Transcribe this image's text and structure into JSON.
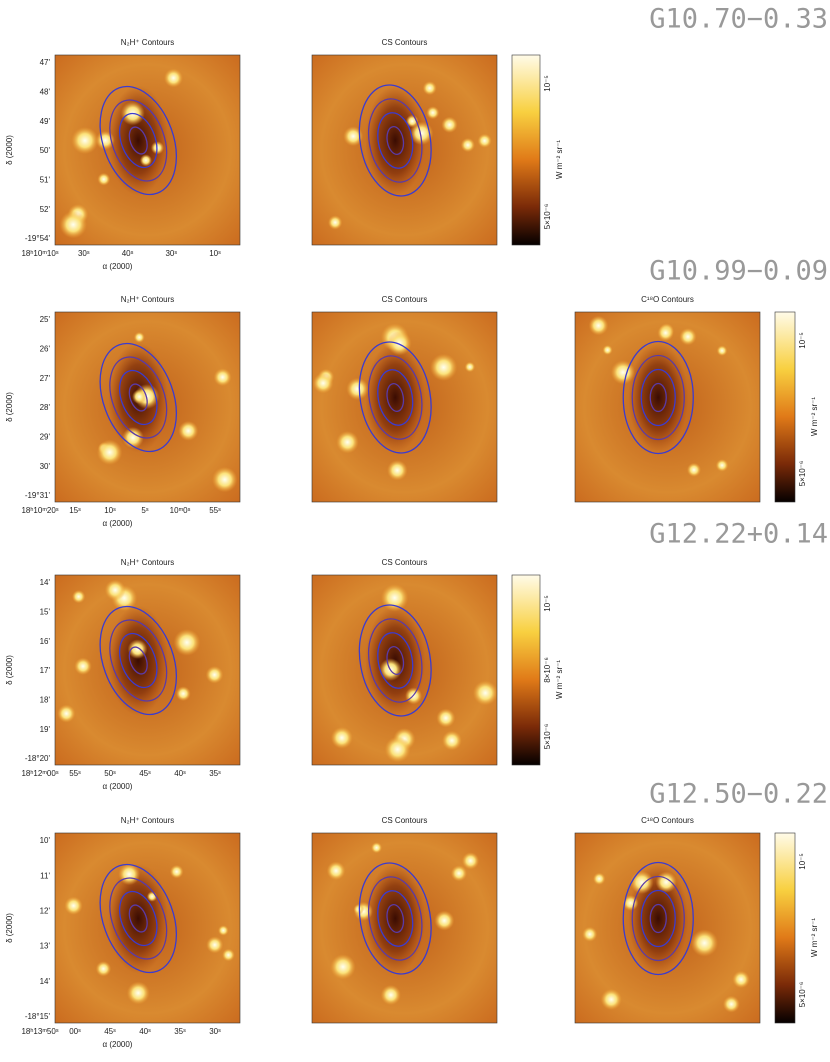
{
  "figures": [
    {
      "source": "G10.70−0.33",
      "panels": [
        {
          "title": "N₂H⁺ Contours"
        },
        {
          "title": "CS Contours"
        }
      ],
      "y_label": "δ (2000)",
      "x_label": "α (2000)",
      "y_ticks": [
        "47'",
        "48'",
        "49'",
        "50'",
        "51'",
        "52'",
        "-19°54'"
      ],
      "x_ticks": [
        "18ʰ10ᵐ10ˢ",
        "30ˢ",
        "40ˢ",
        "30ˢ",
        "10ˢ"
      ],
      "colorbar_labels": [
        "5×10⁻⁶",
        "10⁻⁵"
      ],
      "colorbar_unit": "W m⁻² sr⁻¹"
    },
    {
      "source": "G10.99−0.09",
      "panels": [
        {
          "title": "N₂H⁺ Contours"
        },
        {
          "title": "CS Contours"
        },
        {
          "title": "C¹⁸O Contours"
        }
      ],
      "y_label": "δ (2000)",
      "x_label": "α (2000)",
      "y_ticks": [
        "25'",
        "26'",
        "27'",
        "28'",
        "29'",
        "30'",
        "-19°31'"
      ],
      "x_ticks": [
        "18ʰ10ᵐ20ˢ",
        "15ˢ",
        "10ˢ",
        "5ˢ",
        "10ᵐ0ˢ",
        "55ˢ"
      ],
      "colorbar_labels": [
        "5×10⁻⁶",
        "10⁻⁵"
      ],
      "colorbar_unit": "W m⁻² sr⁻¹"
    },
    {
      "source": "G12.22+0.14",
      "panels": [
        {
          "title": "N₂H⁺ Contours"
        },
        {
          "title": "CS Contours"
        }
      ],
      "y_label": "δ (2000)",
      "x_label": "α (2000)",
      "y_ticks": [
        "14'",
        "15'",
        "16'",
        "17'",
        "18'",
        "19'",
        "-18°20'"
      ],
      "x_ticks": [
        "18ʰ12ᵐ00ˢ",
        "55ˢ",
        "50ˢ",
        "45ˢ",
        "40ˢ",
        "35ˢ"
      ],
      "colorbar_labels": [
        "5×10⁻⁶",
        "8×10⁻⁶",
        "10⁻⁵"
      ],
      "colorbar_unit": "W m⁻² sr⁻¹"
    },
    {
      "source": "G12.50−0.22",
      "panels": [
        {
          "title": "N₂H⁺ Contours"
        },
        {
          "title": "CS Contours"
        },
        {
          "title": "C¹⁸O Contours"
        }
      ],
      "y_label": "δ (2000)",
      "x_label": "α (2000)",
      "y_ticks": [
        "10'",
        "11'",
        "12'",
        "13'",
        "14'",
        "-18°15'"
      ],
      "x_ticks": [
        "18ʰ13ᵐ50ˢ",
        "00ˢ",
        "45ˢ",
        "40ˢ",
        "35ˢ",
        "30ˢ"
      ],
      "colorbar_labels": [
        "5×10⁻⁶",
        "10⁻⁵"
      ],
      "colorbar_unit": "W m⁻² sr⁻¹"
    }
  ]
}
